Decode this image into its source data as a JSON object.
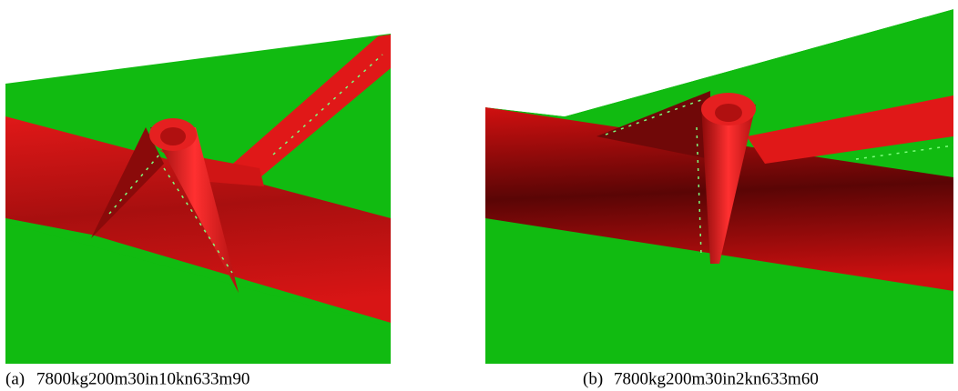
{
  "panels": [
    {
      "label": "(a)",
      "caption": "7800kg200m30in10kn633m90"
    },
    {
      "label": "(b)",
      "caption": "7800kg200m30in2kn633m60"
    }
  ]
}
